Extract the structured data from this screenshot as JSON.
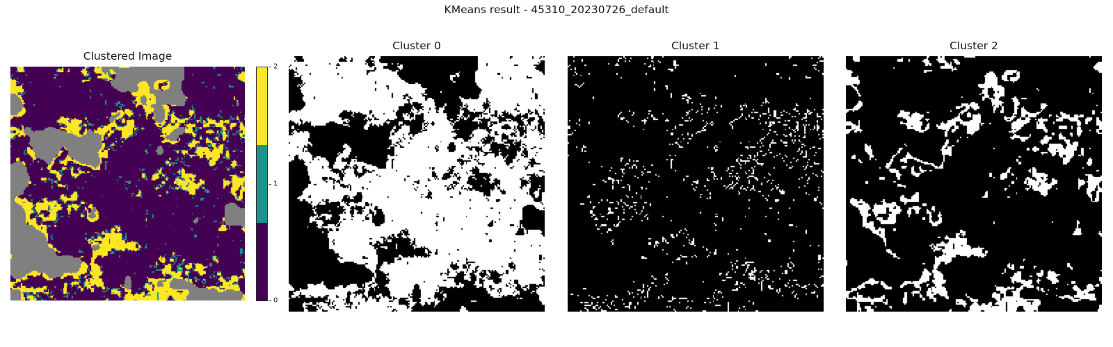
{
  "chart_data": {
    "type": "heatmap",
    "title": "KMeans result - 45310_20230726_default",
    "panels": [
      {
        "title": "Clustered Image",
        "kind": "clustered",
        "colors": {
          "nodata": "#808080",
          "c0": "#440154",
          "c1": "#21918c",
          "c2": "#fde725"
        }
      },
      {
        "title": "Cluster 0",
        "kind": "mask",
        "cluster": 0,
        "fg": "#ffffff",
        "bg": "#000000"
      },
      {
        "title": "Cluster 1",
        "kind": "mask",
        "cluster": 1,
        "fg": "#ffffff",
        "bg": "#000000"
      },
      {
        "title": "Cluster 2",
        "kind": "mask",
        "cluster": 2,
        "fg": "#ffffff",
        "bg": "#000000"
      }
    ],
    "colorbar": {
      "ticks": [
        "0",
        "1",
        "2"
      ],
      "range": [
        0,
        2
      ],
      "colors": [
        "#440154",
        "#21918c",
        "#fde725"
      ]
    }
  }
}
